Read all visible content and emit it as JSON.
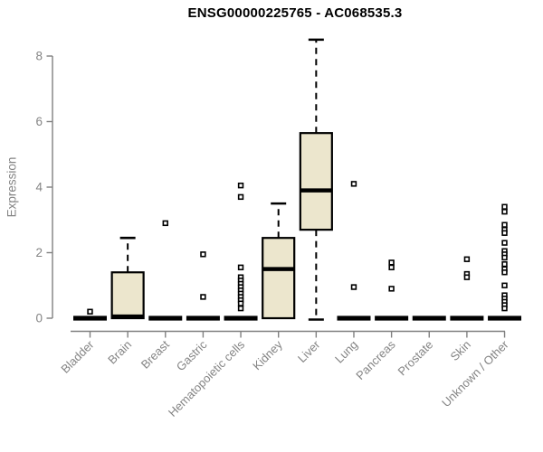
{
  "chart_data": {
    "type": "boxplot",
    "title": "ENSG00000225765 - AC068535.3",
    "ylabel": "Expression",
    "ylim": [
      0,
      8.6
    ],
    "yticks": [
      0,
      2,
      4,
      6,
      8
    ],
    "grid": false,
    "legend": "none",
    "categories": [
      "Bladder",
      "Brain",
      "Breast",
      "Gastric",
      "Hematopoietic cells",
      "Kidney",
      "Liver",
      "Lung",
      "Pancreas",
      "Prostate",
      "Skin",
      "Unknown / Other"
    ],
    "boxes": [
      {
        "category": "Bladder",
        "q1": 0,
        "median": 0,
        "q3": 0,
        "whisker_low": 0,
        "whisker_high": 0,
        "outliers": [
          0.2
        ]
      },
      {
        "category": "Brain",
        "q1": 0,
        "median": 0.05,
        "q3": 1.4,
        "whisker_low": 0,
        "whisker_high": 2.45,
        "outliers": []
      },
      {
        "category": "Breast",
        "q1": 0,
        "median": 0,
        "q3": 0,
        "whisker_low": 0,
        "whisker_high": 0,
        "outliers": [
          2.9
        ]
      },
      {
        "category": "Gastric",
        "q1": 0,
        "median": 0,
        "q3": 0,
        "whisker_low": 0,
        "whisker_high": 0,
        "outliers": [
          1.95,
          0.65
        ]
      },
      {
        "category": "Hematopoietic cells",
        "q1": 0,
        "median": 0,
        "q3": 0,
        "whisker_low": 0,
        "whisker_high": 0,
        "outliers": [
          4.05,
          3.7,
          1.55,
          1.25,
          1.15,
          1.05,
          0.95,
          0.85,
          0.75,
          0.65,
          0.55,
          0.45,
          0.3
        ]
      },
      {
        "category": "Kidney",
        "q1": 0,
        "median": 1.5,
        "q3": 2.45,
        "whisker_low": 0,
        "whisker_high": 3.5,
        "outliers": []
      },
      {
        "category": "Liver",
        "q1": 2.7,
        "median": 3.9,
        "q3": 5.65,
        "whisker_low": 0,
        "whisker_high": 8.5,
        "outliers": []
      },
      {
        "category": "Lung",
        "q1": 0,
        "median": 0,
        "q3": 0,
        "whisker_low": 0,
        "whisker_high": 0,
        "outliers": [
          4.1,
          0.95
        ]
      },
      {
        "category": "Pancreas",
        "q1": 0,
        "median": 0,
        "q3": 0,
        "whisker_low": 0,
        "whisker_high": 0,
        "outliers": [
          1.7,
          1.55,
          0.9
        ]
      },
      {
        "category": "Prostate",
        "q1": 0,
        "median": 0,
        "q3": 0,
        "whisker_low": 0,
        "whisker_high": 0,
        "outliers": []
      },
      {
        "category": "Skin",
        "q1": 0,
        "median": 0,
        "q3": 0,
        "whisker_low": 0,
        "whisker_high": 0,
        "outliers": [
          1.8,
          1.35,
          1.25
        ]
      },
      {
        "category": "Unknown / Other",
        "q1": 0,
        "median": 0,
        "q3": 0,
        "whisker_low": 0,
        "whisker_high": 0,
        "outliers": [
          3.4,
          3.25,
          2.85,
          2.7,
          2.6,
          2.3,
          2.05,
          1.95,
          1.85,
          1.65,
          1.5,
          1.4,
          1.0,
          0.7,
          0.6,
          0.5,
          0.4,
          0.3
        ]
      }
    ],
    "colors": {
      "box_fill": "#ece6cd",
      "box_border": "#000000",
      "median": "#000000",
      "whisker": "#000000",
      "outlier_stroke": "#000000",
      "outlier_fill": "#ffffff",
      "axis": "#808080",
      "tick_label": "#848484",
      "title": "#000000",
      "background": "#ffffff"
    }
  }
}
